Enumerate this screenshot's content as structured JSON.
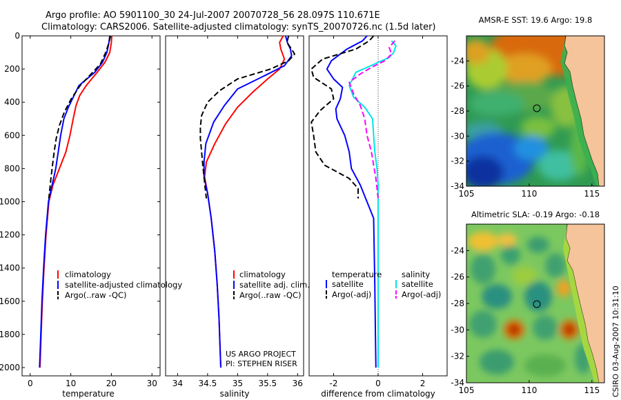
{
  "header": {
    "title_line1": "Argo profile: AO 5901100_30 24-Jul-2007 20070728_56 28.097S 110.671E",
    "title_line2": "Climatology: CARS2006. Satellite-adjusted climatology: synTS_20070726.nc (1.5d later)"
  },
  "side_label": "CSIRO 03-Aug-2007 10:31:10",
  "chart_data": [
    {
      "type": "line",
      "id": "temperature",
      "xlabel": "temperature",
      "xlim": [
        -2,
        32
      ],
      "ylim": [
        2050,
        0
      ],
      "xticks": [
        0,
        10,
        20,
        30
      ],
      "yticks": [
        0,
        200,
        400,
        600,
        800,
        1000,
        1200,
        1400,
        1600,
        1800,
        2000
      ],
      "legend": [
        "climatology",
        "satellite-adjusted climatology",
        "Argo(..raw -QC)"
      ],
      "colors": [
        "#ff0000",
        "#0000ff",
        "#000000"
      ],
      "series": [
        {
          "name": "climatology",
          "color": "#ff0000",
          "dash": false,
          "points": [
            [
              20.1,
              0
            ],
            [
              20.0,
              40
            ],
            [
              19.6,
              100
            ],
            [
              18.4,
              160
            ],
            [
              16.5,
              220
            ],
            [
              13.8,
              300
            ],
            [
              12.2,
              360
            ],
            [
              11.3,
              420
            ],
            [
              10.6,
              500
            ],
            [
              9.8,
              600
            ],
            [
              8.8,
              700
            ],
            [
              7.2,
              800
            ],
            [
              5.6,
              900
            ],
            [
              4.6,
              1000
            ],
            [
              3.9,
              1200
            ],
            [
              3.4,
              1400
            ],
            [
              3.0,
              1600
            ],
            [
              2.7,
              1800
            ],
            [
              2.4,
              2000
            ]
          ]
        },
        {
          "name": "satellite-adjusted climatology",
          "color": "#0000ff",
          "dash": false,
          "points": [
            [
              19.6,
              0
            ],
            [
              19.4,
              40
            ],
            [
              18.9,
              100
            ],
            [
              17.8,
              160
            ],
            [
              15.9,
              220
            ],
            [
              12.0,
              300
            ],
            [
              10.8,
              360
            ],
            [
              9.4,
              430
            ],
            [
              8.3,
              500
            ],
            [
              7.5,
              600
            ],
            [
              6.9,
              700
            ],
            [
              6.3,
              800
            ],
            [
              5.4,
              900
            ],
            [
              4.5,
              1000
            ],
            [
              3.8,
              1200
            ],
            [
              3.3,
              1400
            ],
            [
              2.9,
              1600
            ],
            [
              2.6,
              1800
            ],
            [
              2.3,
              2000
            ]
          ]
        },
        {
          "name": "Argo(..raw -QC)",
          "color": "#000000",
          "dash": true,
          "points": [
            [
              19.8,
              0
            ],
            [
              19.3,
              50
            ],
            [
              18.6,
              100
            ],
            [
              17.3,
              170
            ],
            [
              15.0,
              230
            ],
            [
              12.3,
              300
            ],
            [
              10.1,
              380
            ],
            [
              8.4,
              460
            ],
            [
              7.2,
              540
            ],
            [
              6.4,
              620
            ],
            [
              5.9,
              700
            ],
            [
              5.5,
              780
            ],
            [
              5.1,
              860
            ],
            [
              4.6,
              980
            ]
          ]
        }
      ]
    },
    {
      "type": "line",
      "id": "salinity",
      "xlabel": "salinity",
      "xlim": [
        33.8,
        36.1
      ],
      "ylim": [
        2050,
        0
      ],
      "xticks": [
        34,
        34.5,
        35,
        35.5,
        36
      ],
      "legend": [
        "climatology",
        "satellite adj. clim.",
        "Argo(..raw -QC)"
      ],
      "colors": [
        "#ff0000",
        "#0000ff",
        "#000000"
      ],
      "annotation": [
        "US ARGO PROJECT",
        "PI: STEPHEN RISER"
      ],
      "series": [
        {
          "name": "climatology",
          "color": "#ff0000",
          "dash": false,
          "points": [
            [
              35.76,
              0
            ],
            [
              35.7,
              40
            ],
            [
              35.72,
              80
            ],
            [
              35.78,
              140
            ],
            [
              35.7,
              200
            ],
            [
              35.5,
              260
            ],
            [
              35.25,
              340
            ],
            [
              35.0,
              430
            ],
            [
              34.8,
              530
            ],
            [
              34.62,
              650
            ],
            [
              34.48,
              760
            ],
            [
              34.45,
              850
            ],
            [
              34.5,
              950
            ],
            [
              34.56,
              1100
            ],
            [
              34.62,
              1300
            ],
            [
              34.66,
              1500
            ],
            [
              34.69,
              1700
            ],
            [
              34.71,
              1900
            ],
            [
              34.72,
              2000
            ]
          ]
        },
        {
          "name": "satellite adj. clim.",
          "color": "#0000ff",
          "dash": false,
          "points": [
            [
              35.8,
              0
            ],
            [
              35.83,
              40
            ],
            [
              35.88,
              80
            ],
            [
              35.9,
              120
            ],
            [
              35.78,
              180
            ],
            [
              35.45,
              240
            ],
            [
              35.0,
              320
            ],
            [
              34.78,
              420
            ],
            [
              34.6,
              520
            ],
            [
              34.47,
              650
            ],
            [
              34.44,
              760
            ],
            [
              34.44,
              850
            ],
            [
              34.5,
              950
            ],
            [
              34.56,
              1100
            ],
            [
              34.62,
              1300
            ],
            [
              34.66,
              1500
            ],
            [
              34.69,
              1700
            ],
            [
              34.71,
              1900
            ],
            [
              34.72,
              2000
            ]
          ]
        },
        {
          "name": "Argo(..raw -QC)",
          "color": "#000000",
          "dash": true,
          "points": [
            [
              35.85,
              0
            ],
            [
              35.82,
              40
            ],
            [
              35.9,
              80
            ],
            [
              35.95,
              110
            ],
            [
              35.85,
              150
            ],
            [
              35.55,
              200
            ],
            [
              35.0,
              260
            ],
            [
              34.7,
              330
            ],
            [
              34.5,
              400
            ],
            [
              34.4,
              480
            ],
            [
              34.38,
              550
            ],
            [
              34.38,
              620
            ],
            [
              34.4,
              700
            ],
            [
              34.42,
              780
            ],
            [
              34.44,
              850
            ],
            [
              34.46,
              920
            ],
            [
              34.48,
              980
            ]
          ]
        }
      ]
    },
    {
      "type": "line",
      "id": "difference",
      "xlabel": "difference from climatology",
      "xlim": [
        -3.1,
        3.1
      ],
      "xticks": [
        -2,
        0,
        2
      ],
      "legend_left": {
        "title": "temperature",
        "items": [
          "satellite",
          "Argo(-adj)"
        ],
        "colors": [
          "#0000ff",
          "#000000"
        ]
      },
      "legend_right": {
        "title": "salinity",
        "items": [
          "satellite",
          "Argo(-adj)"
        ],
        "colors": [
          "#00e5e5",
          "#ff00ff"
        ]
      },
      "series": [
        {
          "name": "temperature satellite",
          "color": "#0000ff",
          "dash": false,
          "points": [
            [
              -0.5,
              0
            ],
            [
              -0.7,
              30
            ],
            [
              -1.4,
              80
            ],
            [
              -2.1,
              150
            ],
            [
              -2.3,
              200
            ],
            [
              -2.0,
              260
            ],
            [
              -1.6,
              310
            ],
            [
              -1.7,
              380
            ],
            [
              -1.9,
              440
            ],
            [
              -1.85,
              500
            ],
            [
              -1.5,
              600
            ],
            [
              -1.3,
              700
            ],
            [
              -1.2,
              800
            ],
            [
              -0.8,
              900
            ],
            [
              -0.2,
              1100
            ],
            [
              -0.15,
              1500
            ],
            [
              -0.12,
              1800
            ],
            [
              -0.1,
              2000
            ]
          ]
        },
        {
          "name": "temperature Argo(-adj)",
          "color": "#000000",
          "dash": true,
          "points": [
            [
              -0.2,
              0
            ],
            [
              -0.4,
              30
            ],
            [
              -1.0,
              80
            ],
            [
              -2.5,
              140
            ],
            [
              -3.0,
              200
            ],
            [
              -2.9,
              250
            ],
            [
              -2.1,
              320
            ],
            [
              -2.0,
              380
            ],
            [
              -2.6,
              450
            ],
            [
              -3.0,
              520
            ],
            [
              -2.9,
              600
            ],
            [
              -2.8,
              700
            ],
            [
              -2.4,
              780
            ],
            [
              -1.3,
              860
            ],
            [
              -0.9,
              920
            ],
            [
              -0.9,
              980
            ]
          ]
        },
        {
          "name": "salinity satellite",
          "color": "#00e5e5",
          "dash": false,
          "points": [
            [
              0.6,
              30
            ],
            [
              0.8,
              60
            ],
            [
              0.7,
              100
            ],
            [
              0.5,
              130
            ],
            [
              0.0,
              160
            ],
            [
              -1.0,
              220
            ],
            [
              -1.3,
              300
            ],
            [
              -1.1,
              370
            ],
            [
              -0.6,
              430
            ],
            [
              -0.25,
              500
            ],
            [
              -0.2,
              600
            ],
            [
              -0.15,
              700
            ],
            [
              -0.05,
              800
            ],
            [
              0.0,
              900
            ],
            [
              0.0,
              1200
            ],
            [
              0.0,
              1600
            ],
            [
              0.0,
              2000
            ]
          ]
        },
        {
          "name": "salinity Argo(-adj)",
          "color": "#ff00ff",
          "dash": true,
          "points": [
            [
              0.75,
              30
            ],
            [
              0.5,
              70
            ],
            [
              0.6,
              110
            ],
            [
              0.3,
              150
            ],
            [
              -0.3,
              190
            ],
            [
              -0.8,
              230
            ],
            [
              -1.3,
              280
            ],
            [
              -1.1,
              350
            ],
            [
              -0.8,
              420
            ],
            [
              -0.6,
              500
            ],
            [
              -0.5,
              600
            ],
            [
              -0.3,
              700
            ],
            [
              -0.2,
              780
            ],
            [
              -0.1,
              860
            ],
            [
              -0.05,
              920
            ],
            [
              0.0,
              980
            ]
          ]
        }
      ]
    },
    {
      "type": "heatmap",
      "id": "sst-map",
      "title": "AMSR-E SST: 19.6 Argo: 19.8",
      "xlim": [
        105,
        116
      ],
      "ylim": [
        -34,
        -22
      ],
      "xticks": [
        105,
        110,
        115
      ],
      "yticks": [
        -24,
        -26,
        -28,
        -30,
        -32,
        -34
      ],
      "argo_position": [
        110.67,
        -28.1
      ]
    },
    {
      "type": "heatmap",
      "id": "sla-map",
      "title": "Altimetric SLA: -0.19 Argo: -0.18",
      "xlim": [
        105,
        116
      ],
      "ylim": [
        -34,
        -22
      ],
      "xticks": [
        105,
        110,
        115
      ],
      "yticks": [
        -24,
        -26,
        -28,
        -30,
        -32,
        -34
      ],
      "argo_position": [
        110.67,
        -28.1
      ]
    }
  ]
}
